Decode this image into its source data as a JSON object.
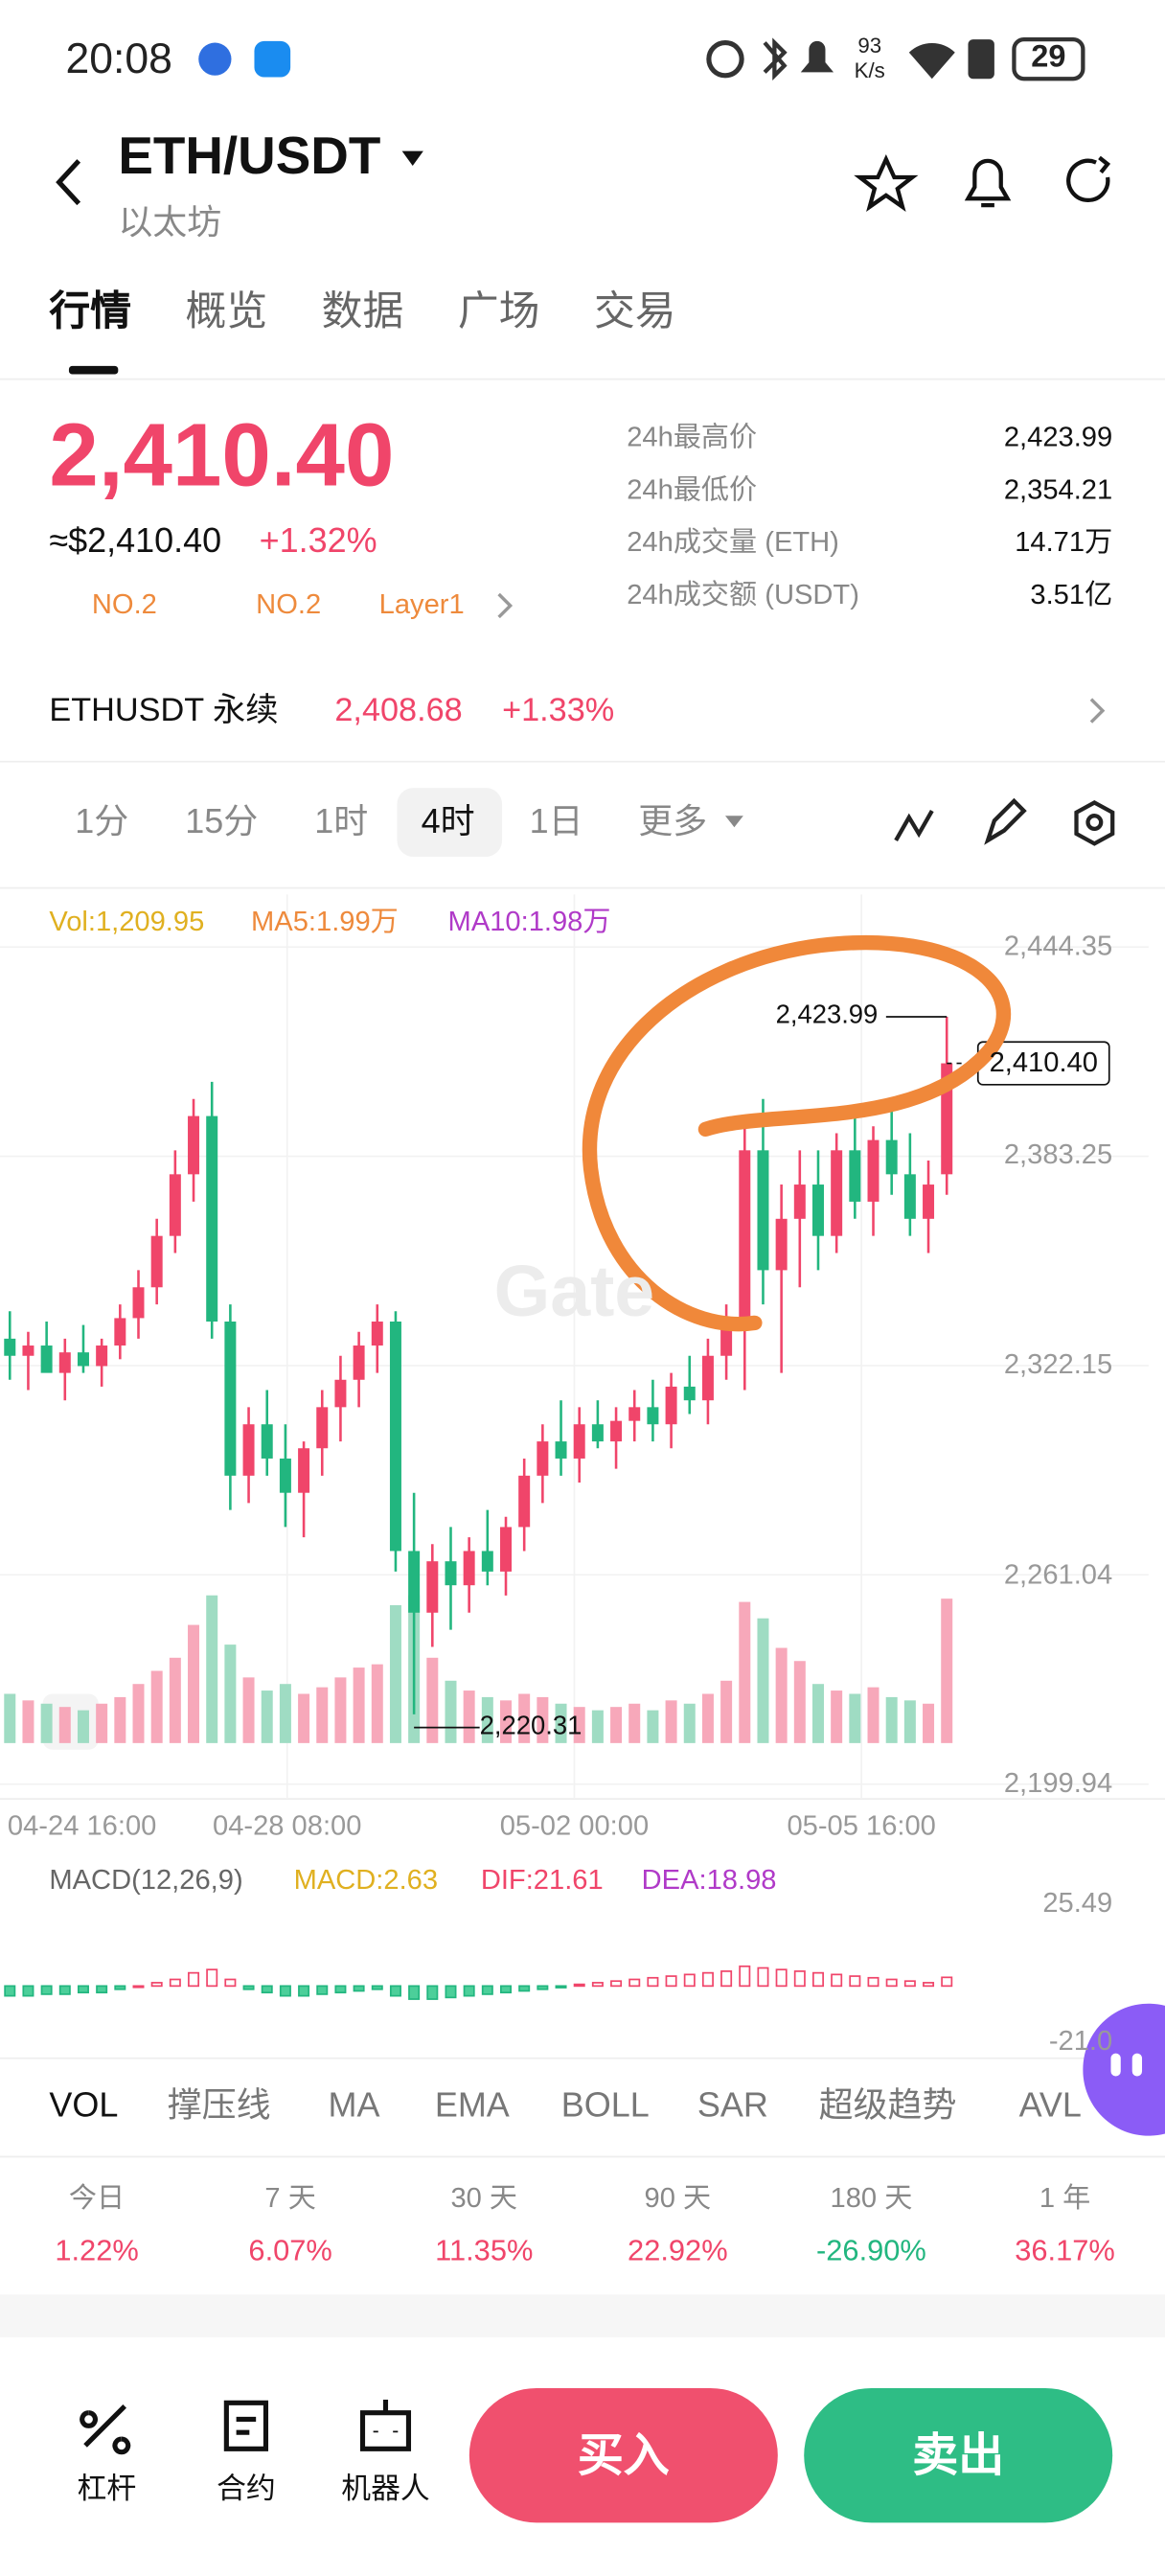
{
  "status_bar": {
    "time": "20:08",
    "speed": "93",
    "speed_unit": "K/s",
    "battery": "29"
  },
  "header": {
    "pair": "ETH/USDT",
    "name": "以太坊"
  },
  "tabs": [
    "行情",
    "概览",
    "数据",
    "广场",
    "交易"
  ],
  "price": {
    "last": "2,410.40",
    "approx": "≈$2,410.40",
    "change": "+1.32%",
    "badges": [
      "NO.2",
      "NO.2",
      "Layer1"
    ]
  },
  "stats": [
    {
      "label": "24h最高价",
      "value": "2,423.99"
    },
    {
      "label": "24h最低价",
      "value": "2,354.21"
    },
    {
      "label": "24h成交量 (ETH)",
      "value": "14.71万"
    },
    {
      "label": "24h成交额 (USDT)",
      "value": "3.51亿"
    }
  ],
  "perpetual": {
    "name": "ETHUSDT 永续",
    "price": "2,408.68",
    "change": "+1.33%"
  },
  "intervals": [
    "1分",
    "15分",
    "1时",
    "4时",
    "1日",
    "更多"
  ],
  "chart": {
    "indicators": [
      "Vol:1,209.95",
      "MA5:1.99万",
      "MA10:1.98万"
    ],
    "watermark": "Gate",
    "ylim": [
      2199.94,
      2444.35
    ],
    "yticks": [
      {
        "value": 2444.35,
        "label": "2,444.35"
      },
      {
        "value": 2383.25,
        "label": "2,383.25"
      },
      {
        "value": 2322.15,
        "label": "2,322.15"
      },
      {
        "value": 2261.04,
        "label": "2,261.04"
      },
      {
        "value": 2199.94,
        "label": "2,199.94"
      }
    ],
    "high_label": "2,423.99",
    "low_label": "2,220.31",
    "last_label": "2,410.40",
    "xlabels": [
      "04-24 16:00",
      "04-28 08:00",
      "05-02 00:00",
      "05-05 16:00"
    ],
    "candles": [
      {
        "open": 2330,
        "high": 2338,
        "low": 2318,
        "close": 2325
      },
      {
        "open": 2325,
        "high": 2332,
        "low": 2315,
        "close": 2328
      },
      {
        "open": 2328,
        "high": 2335,
        "low": 2322,
        "close": 2320
      },
      {
        "open": 2320,
        "high": 2330,
        "low": 2312,
        "close": 2326
      },
      {
        "open": 2326,
        "high": 2334,
        "low": 2320,
        "close": 2322
      },
      {
        "open": 2322,
        "high": 2330,
        "low": 2316,
        "close": 2328
      },
      {
        "open": 2328,
        "high": 2340,
        "low": 2324,
        "close": 2336
      },
      {
        "open": 2336,
        "high": 2350,
        "low": 2330,
        "close": 2345
      },
      {
        "open": 2345,
        "high": 2365,
        "low": 2340,
        "close": 2360
      },
      {
        "open": 2360,
        "high": 2385,
        "low": 2355,
        "close": 2378
      },
      {
        "open": 2378,
        "high": 2400,
        "low": 2370,
        "close": 2395
      },
      {
        "open": 2395,
        "high": 2405,
        "low": 2330,
        "close": 2335
      },
      {
        "open": 2335,
        "high": 2340,
        "low": 2280,
        "close": 2290
      },
      {
        "open": 2290,
        "high": 2310,
        "low": 2282,
        "close": 2305
      },
      {
        "open": 2305,
        "high": 2315,
        "low": 2290,
        "close": 2295
      },
      {
        "open": 2295,
        "high": 2305,
        "low": 2275,
        "close": 2285
      },
      {
        "open": 2285,
        "high": 2300,
        "low": 2272,
        "close": 2298
      },
      {
        "open": 2298,
        "high": 2315,
        "low": 2290,
        "close": 2310
      },
      {
        "open": 2310,
        "high": 2325,
        "low": 2300,
        "close": 2318
      },
      {
        "open": 2318,
        "high": 2332,
        "low": 2310,
        "close": 2328
      },
      {
        "open": 2328,
        "high": 2340,
        "low": 2320,
        "close": 2335
      },
      {
        "open": 2335,
        "high": 2338,
        "low": 2262,
        "close": 2268
      },
      {
        "open": 2268,
        "high": 2285,
        "low": 2220.31,
        "close": 2250
      },
      {
        "open": 2250,
        "high": 2270,
        "low": 2240,
        "close": 2265
      },
      {
        "open": 2265,
        "high": 2275,
        "low": 2245,
        "close": 2258
      },
      {
        "open": 2258,
        "high": 2272,
        "low": 2250,
        "close": 2268
      },
      {
        "open": 2268,
        "high": 2280,
        "low": 2258,
        "close": 2262
      },
      {
        "open": 2262,
        "high": 2278,
        "low": 2255,
        "close": 2275
      },
      {
        "open": 2275,
        "high": 2295,
        "low": 2268,
        "close": 2290
      },
      {
        "open": 2290,
        "high": 2305,
        "low": 2282,
        "close": 2300
      },
      {
        "open": 2300,
        "high": 2312,
        "low": 2290,
        "close": 2295
      },
      {
        "open": 2295,
        "high": 2310,
        "low": 2288,
        "close": 2305
      },
      {
        "open": 2305,
        "high": 2312,
        "low": 2298,
        "close": 2300
      },
      {
        "open": 2300,
        "high": 2310,
        "low": 2292,
        "close": 2306
      },
      {
        "open": 2306,
        "high": 2315,
        "low": 2300,
        "close": 2310
      },
      {
        "open": 2310,
        "high": 2318,
        "low": 2300,
        "close": 2305
      },
      {
        "open": 2305,
        "high": 2320,
        "low": 2298,
        "close": 2316
      },
      {
        "open": 2316,
        "high": 2325,
        "low": 2308,
        "close": 2312
      },
      {
        "open": 2312,
        "high": 2330,
        "low": 2305,
        "close": 2325
      },
      {
        "open": 2325,
        "high": 2340,
        "low": 2318,
        "close": 2335
      },
      {
        "open": 2335,
        "high": 2395,
        "low": 2315,
        "close": 2385
      },
      {
        "open": 2385,
        "high": 2400,
        "low": 2340,
        "close": 2350
      },
      {
        "open": 2350,
        "high": 2375,
        "low": 2320,
        "close": 2365
      },
      {
        "open": 2365,
        "high": 2385,
        "low": 2345,
        "close": 2375
      },
      {
        "open": 2375,
        "high": 2385,
        "low": 2350,
        "close": 2360
      },
      {
        "open": 2360,
        "high": 2390,
        "low": 2355,
        "close": 2385
      },
      {
        "open": 2385,
        "high": 2395,
        "low": 2365,
        "close": 2370
      },
      {
        "open": 2370,
        "high": 2392,
        "low": 2360,
        "close": 2388
      },
      {
        "open": 2388,
        "high": 2398,
        "low": 2372,
        "close": 2378
      },
      {
        "open": 2378,
        "high": 2390,
        "low": 2360,
        "close": 2365
      },
      {
        "open": 2365,
        "high": 2382,
        "low": 2355,
        "close": 2375
      },
      {
        "open": 2378,
        "high": 2423.99,
        "low": 2372,
        "close": 2410.4
      }
    ],
    "volumes": [
      1.5,
      1.3,
      1.2,
      1.1,
      1.0,
      1.2,
      1.4,
      1.8,
      2.2,
      2.6,
      3.6,
      4.5,
      3.0,
      2.0,
      1.6,
      1.8,
      1.5,
      1.7,
      2.0,
      2.3,
      2.4,
      4.2,
      4.5,
      2.6,
      1.9,
      1.6,
      1.4,
      1.3,
      1.5,
      1.4,
      1.2,
      1.1,
      1.0,
      1.1,
      1.2,
      1.0,
      1.3,
      1.2,
      1.5,
      1.9,
      4.3,
      3.8,
      2.9,
      2.5,
      1.8,
      1.6,
      1.5,
      1.7,
      1.4,
      1.3,
      1.2,
      4.4
    ],
    "macd": {
      "title": "MACD(12,26,9)",
      "items": [
        "MACD:2.63",
        "DIF:21.61",
        "DEA:18.98"
      ],
      "top_label": "25.49",
      "bottom_label": "-21.0",
      "values": [
        -3,
        -3,
        -2.5,
        -2.5,
        -2,
        -2,
        -1,
        0,
        1,
        2,
        4,
        5,
        2,
        -1,
        -2,
        -3,
        -3,
        -2.5,
        -2,
        -1.5,
        -1,
        -3,
        -4,
        -4,
        -3.5,
        -3,
        -2.5,
        -2,
        -1.5,
        -1,
        -0.5,
        0.5,
        1,
        1.5,
        2,
        2.5,
        3,
        3.5,
        4,
        4.5,
        6,
        5.5,
        5,
        4.5,
        4,
        3.5,
        3,
        2.5,
        2,
        1.5,
        1,
        2.63
      ]
    }
  },
  "indicator_tabs": [
    "VOL",
    "撑压线",
    "MA",
    "EMA",
    "BOLL",
    "SAR",
    "超级趋势",
    "AVL"
  ],
  "performance": [
    {
      "period": "今日",
      "change": "1.22%"
    },
    {
      "period": "7 天",
      "change": "6.07%"
    },
    {
      "period": "30 天",
      "change": "11.35%"
    },
    {
      "period": "90 天",
      "change": "22.92%"
    },
    {
      "period": "180 天",
      "change": "-26.90%"
    },
    {
      "period": "1 年",
      "change": "36.17%"
    }
  ],
  "bottom": {
    "tools": [
      "杠杆",
      "合约",
      "机器人"
    ],
    "buy": "买入",
    "sell": "卖出"
  }
}
